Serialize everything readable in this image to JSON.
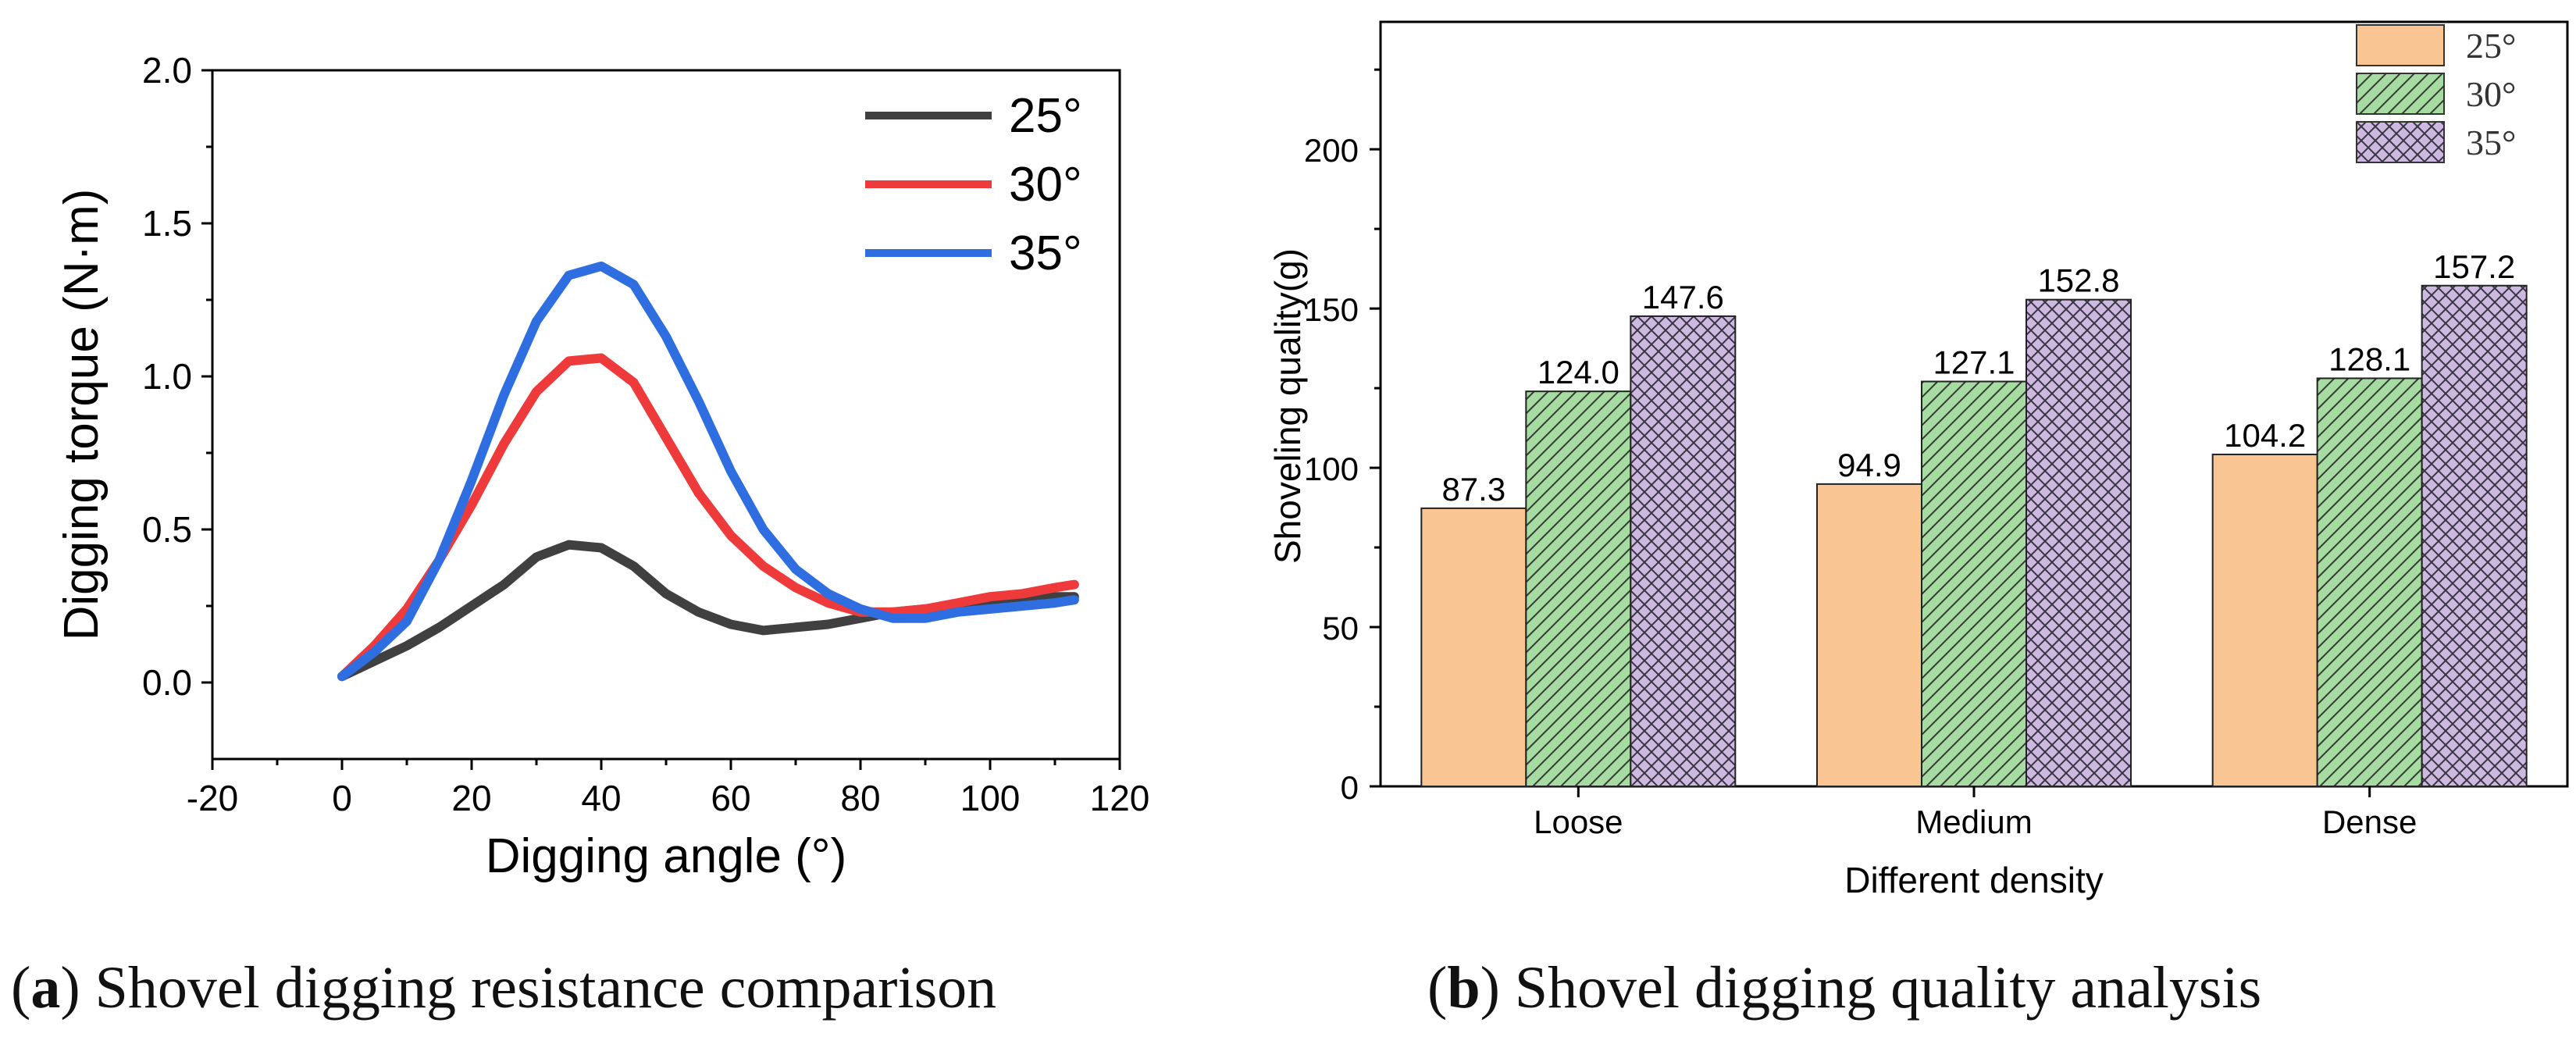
{
  "chart_data": [
    {
      "type": "line",
      "caption": {
        "letter": "a",
        "open": "(",
        "close": ")",
        "text": " Shovel digging resistance comparison"
      },
      "xlabel": "Digging angle (°)",
      "ylabel": "Digging torque (N·m)",
      "xlim": [
        -20,
        120
      ],
      "ylim": [
        -0.25,
        2.0
      ],
      "xticks": [
        -20,
        0,
        20,
        40,
        60,
        80,
        100,
        120
      ],
      "yticks": [
        0.0,
        0.5,
        1.0,
        1.5,
        2.0
      ],
      "legend_position": "top-right",
      "series": [
        {
          "name": "25°",
          "color": "#404040",
          "x": [
            0,
            5,
            10,
            15,
            20,
            25,
            30,
            35,
            40,
            45,
            50,
            55,
            60,
            65,
            70,
            75,
            80,
            85,
            90,
            95,
            100,
            105,
            110,
            113
          ],
          "y": [
            0.02,
            0.07,
            0.12,
            0.18,
            0.25,
            0.32,
            0.41,
            0.45,
            0.44,
            0.38,
            0.29,
            0.23,
            0.19,
            0.17,
            0.18,
            0.19,
            0.21,
            0.23,
            0.24,
            0.25,
            0.26,
            0.27,
            0.28,
            0.28
          ]
        },
        {
          "name": "30°",
          "color": "#ee3a3a",
          "x": [
            0,
            5,
            10,
            15,
            20,
            25,
            30,
            35,
            40,
            45,
            50,
            55,
            60,
            65,
            70,
            75,
            80,
            85,
            90,
            95,
            100,
            105,
            110,
            113
          ],
          "y": [
            0.02,
            0.12,
            0.24,
            0.4,
            0.58,
            0.78,
            0.95,
            1.05,
            1.06,
            0.98,
            0.8,
            0.62,
            0.48,
            0.38,
            0.31,
            0.26,
            0.23,
            0.23,
            0.24,
            0.26,
            0.28,
            0.29,
            0.31,
            0.32
          ]
        },
        {
          "name": "35°",
          "color": "#2f6ee0",
          "x": [
            0,
            5,
            10,
            15,
            20,
            25,
            30,
            35,
            40,
            45,
            50,
            55,
            60,
            65,
            70,
            75,
            80,
            85,
            90,
            95,
            100,
            105,
            110,
            113
          ],
          "y": [
            0.02,
            0.1,
            0.2,
            0.4,
            0.66,
            0.94,
            1.18,
            1.33,
            1.36,
            1.3,
            1.13,
            0.92,
            0.69,
            0.5,
            0.37,
            0.29,
            0.24,
            0.21,
            0.21,
            0.23,
            0.24,
            0.25,
            0.26,
            0.27
          ]
        }
      ]
    },
    {
      "type": "bar",
      "caption": {
        "letter": "b",
        "open": "(",
        "close": ")",
        "text": " Shovel digging quality analysis"
      },
      "xlabel": "Different density",
      "ylabel": "Shoveling quality(g)",
      "ylim": [
        0,
        240
      ],
      "yticks": [
        0,
        50,
        100,
        150,
        200
      ],
      "categories": [
        "Loose",
        "Medium",
        "Dense"
      ],
      "legend_position": "top-right",
      "series": [
        {
          "name": "25°",
          "color": "#f9c592",
          "pattern": "solid",
          "values": [
            87.3,
            94.9,
            104.2
          ],
          "labels": [
            "87.3",
            "94.9",
            "104.2"
          ]
        },
        {
          "name": "30°",
          "color": "#a6dba1",
          "pattern": "hatch",
          "values": [
            124.0,
            127.1,
            128.1
          ],
          "labels": [
            "124.0",
            "127.1",
            "128.1"
          ]
        },
        {
          "name": "35°",
          "color": "#cdb9df",
          "pattern": "crosshatch",
          "values": [
            147.6,
            152.8,
            157.2
          ],
          "labels": [
            "147.6",
            "152.8",
            "157.2"
          ]
        }
      ]
    }
  ]
}
